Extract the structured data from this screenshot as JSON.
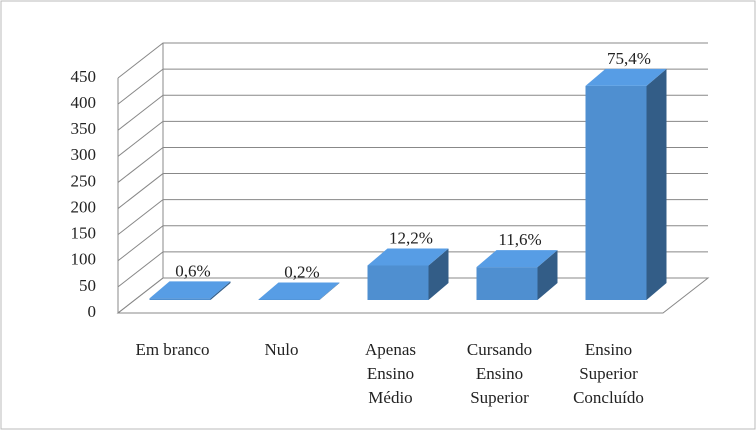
{
  "chart_data": {
    "type": "bar3d",
    "categories": [
      [
        "Em branco"
      ],
      [
        "Nulo"
      ],
      [
        "Apenas",
        "Ensino",
        "Médio"
      ],
      [
        "Cursando",
        "Ensino",
        "Superior"
      ],
      [
        "Ensino",
        "Superior",
        "Concluído"
      ]
    ],
    "values": [
      3,
      1,
      66,
      63,
      410
    ],
    "percent_labels": [
      "0,6%",
      "0,2%",
      "12,2%",
      "11,6%",
      "75,4%"
    ],
    "color": "#4f8fd0",
    "ylim": [
      0,
      450
    ],
    "yticks": [
      0,
      50,
      100,
      150,
      200,
      250,
      300,
      350,
      400,
      450
    ],
    "grid": true
  }
}
